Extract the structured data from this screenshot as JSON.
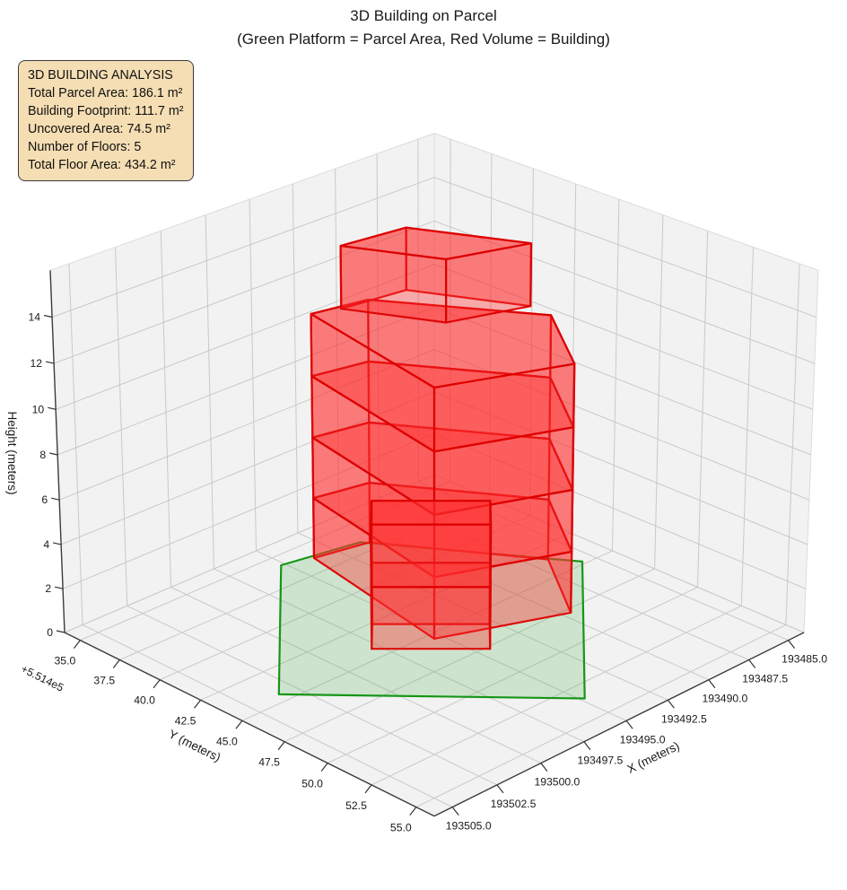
{
  "title": "3D Building on Parcel",
  "subtitle": "(Green Platform = Parcel Area, Red Volume = Building)",
  "info_box": {
    "heading": "3D BUILDING ANALYSIS",
    "lines": [
      "Total Parcel Area: 186.1 m²",
      "Building Footprint: 111.7 m²",
      "Uncovered Area: 74.5 m²",
      "Number of Floors: 5",
      "Total Floor Area: 434.2 m²"
    ],
    "background": "#f5deb3",
    "border_color": "#3a3a3a"
  },
  "chart_data": {
    "type": "3d-building-extrusion",
    "view": {
      "elev_deg": 25,
      "azim_deg": 45,
      "projection": "perspective"
    },
    "axes": {
      "x": {
        "label": "X (meters)",
        "ticks": [
          "193485.0",
          "193487.5",
          "193490.0",
          "193492.5",
          "193495.0",
          "193497.5",
          "193500.0",
          "193502.5",
          "193505.0"
        ],
        "tick_offsets": [
          1,
          3.5,
          6,
          8.5,
          11,
          13.5,
          16,
          18.5,
          21
        ],
        "origin": 193484,
        "range": 22
      },
      "y": {
        "label": "Y (meters)",
        "offset_text": "+5.514e5",
        "ticks": [
          "35.0",
          "37.5",
          "40.0",
          "42.5",
          "45.0",
          "47.5",
          "50.0",
          "52.5",
          "55.0"
        ],
        "tick_offsets": [
          1,
          3.5,
          6,
          8.5,
          11,
          13.5,
          16,
          18.5,
          21
        ],
        "origin": 551434,
        "range": 22
      },
      "z": {
        "label": "Height (meters)",
        "ticks": [
          0,
          2,
          4,
          6,
          8,
          10,
          12,
          14
        ],
        "range": [
          0,
          16
        ]
      }
    },
    "parcel": {
      "outline": [
        [
          11.2,
          1.8
        ],
        [
          7.2,
          2.6
        ],
        [
          1.7,
          10.8
        ],
        [
          10.8,
          19.5
        ],
        [
          19.4,
          10.4
        ]
      ],
      "z": 0,
      "fill": "#3caa3c",
      "fill_opacity": 0.2,
      "edge": "#169616"
    },
    "building": {
      "fill": "#ff3030",
      "fill_opacity": 0.38,
      "edge": "#dd0000",
      "floor_height": 2.8,
      "parts": [
        {
          "name": "tower-floors-1-4",
          "footprint": [
            [
              9.7,
              2.3
            ],
            [
              6.9,
              2.9
            ],
            [
              2.6,
              9.6
            ],
            [
              5.6,
              13.8
            ],
            [
              11.4,
              11.4
            ]
          ],
          "z0": 0,
          "z1": 11.2,
          "floors": 4
        },
        {
          "name": "top-floor-5",
          "footprint": [
            [
              8.4,
              2.8
            ],
            [
              5.0,
              3.3
            ],
            [
              2.5,
              8.3
            ],
            [
              6.3,
              7.0
            ]
          ],
          "z0": 11.2,
          "z1": 14,
          "floors": 1
        },
        {
          "name": "front-wing",
          "footprint": [
            [
              13.9,
              10.2
            ],
            [
              10.4,
              13.7
            ],
            [
              8.8,
              12.1
            ],
            [
              12.3,
              8.6
            ]
          ],
          "z0": 0,
          "z1": 5.6,
          "floors": 2
        }
      ]
    },
    "style": {
      "pane_fill": "#f2f2f2",
      "grid_color": "#c9c9c9",
      "pane_edge": "#dcdcdc",
      "axis_line": "#3c3c3c",
      "tick_color": "#333333",
      "text_color": "#1a1a1a"
    }
  }
}
